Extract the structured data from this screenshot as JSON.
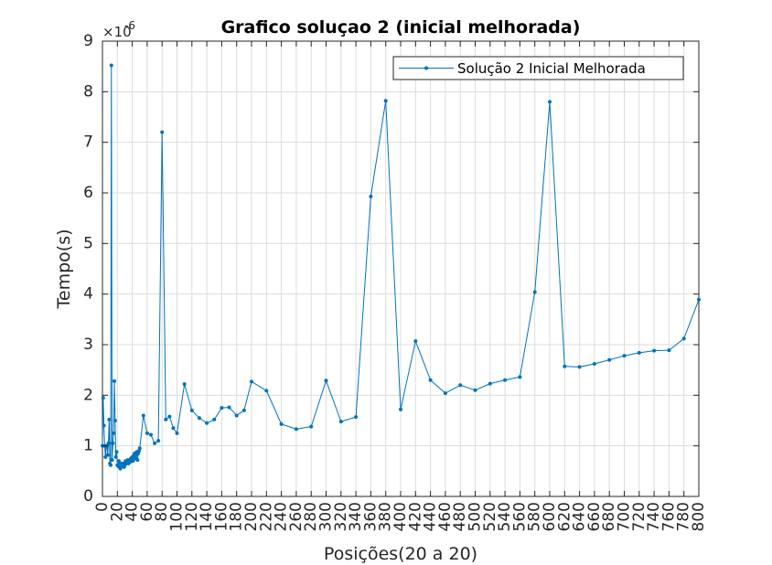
{
  "chart_data": {
    "type": "line",
    "title": "Grafico soluçao 2 (inicial melhorada)",
    "xlabel": "Posições(20 a 20)",
    "ylabel": "Tempo(s)",
    "y_exponent_label": "×10",
    "y_exponent_power": "-6",
    "xlim": [
      0,
      800
    ],
    "ylim": [
      0,
      9
    ],
    "x_ticks": [
      0,
      20,
      40,
      60,
      80,
      100,
      120,
      140,
      160,
      180,
      200,
      220,
      240,
      260,
      280,
      300,
      320,
      340,
      360,
      380,
      400,
      420,
      440,
      460,
      480,
      500,
      520,
      540,
      560,
      580,
      600,
      620,
      640,
      660,
      680,
      700,
      720,
      740,
      760,
      780,
      800
    ],
    "y_ticks": [
      0,
      1,
      2,
      3,
      4,
      5,
      6,
      7,
      8,
      9
    ],
    "grid": true,
    "legend_position": "top-right",
    "series_color": "#0072BD",
    "series": [
      {
        "name": "Solução 2 Inicial Melhorada",
        "x": [
          0,
          1,
          2,
          3,
          4,
          5,
          6,
          7,
          8,
          9,
          10,
          11,
          12,
          13,
          14,
          15,
          16,
          17,
          18,
          19,
          20,
          21,
          22,
          23,
          24,
          25,
          26,
          27,
          28,
          29,
          30,
          31,
          32,
          33,
          34,
          35,
          36,
          37,
          38,
          39,
          40,
          41,
          42,
          43,
          44,
          45,
          46,
          47,
          48,
          49,
          50,
          55,
          60,
          65,
          70,
          75,
          80,
          85,
          90,
          95,
          100,
          110,
          120,
          130,
          140,
          150,
          160,
          170,
          180,
          190,
          200,
          220,
          240,
          260,
          280,
          300,
          320,
          340,
          360,
          380,
          400,
          420,
          440,
          460,
          480,
          500,
          520,
          540,
          560,
          580,
          600,
          620,
          640,
          660,
          680,
          700,
          720,
          740,
          760,
          780,
          800
        ],
        "y": [
          1.0,
          1.95,
          1.4,
          1.0,
          0.78,
          0.98,
          1.0,
          0.82,
          1.05,
          1.52,
          0.65,
          0.62,
          8.52,
          0.72,
          1.05,
          1.25,
          2.28,
          1.5,
          0.78,
          0.88,
          0.62,
          0.6,
          0.7,
          0.58,
          0.55,
          0.65,
          0.6,
          0.62,
          0.65,
          0.58,
          0.62,
          0.7,
          0.65,
          0.68,
          0.72,
          0.65,
          0.7,
          0.68,
          0.75,
          0.72,
          0.78,
          0.7,
          0.8,
          0.85,
          0.75,
          0.82,
          0.88,
          0.72,
          0.85,
          0.9,
          0.95,
          1.6,
          1.25,
          1.22,
          1.05,
          1.1,
          7.2,
          1.52,
          1.58,
          1.35,
          1.25,
          2.22,
          1.7,
          1.55,
          1.45,
          1.52,
          1.75,
          1.76,
          1.6,
          1.7,
          2.27,
          2.09,
          1.43,
          1.33,
          1.38,
          2.29,
          1.48,
          1.57,
          5.93,
          7.82,
          1.72,
          3.07,
          2.3,
          2.04,
          2.2,
          2.1,
          2.23,
          2.3,
          2.36,
          4.04,
          7.8,
          2.57,
          2.56,
          2.62,
          2.7,
          2.78,
          2.84,
          2.88,
          2.89,
          3.12,
          3.89
        ]
      }
    ]
  }
}
